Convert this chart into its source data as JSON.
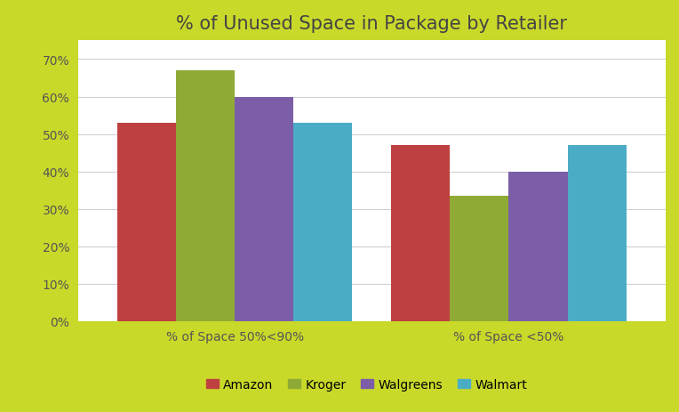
{
  "title": "% of Unused Space in Package by Retailer",
  "categories": [
    "% of Space 50%<90%",
    "% of Space <50%"
  ],
  "retailers": [
    "Amazon",
    "Kroger",
    "Walgreens",
    "Walmart"
  ],
  "values": {
    "Amazon": [
      0.53,
      0.47
    ],
    "Kroger": [
      0.67,
      0.335
    ],
    "Walgreens": [
      0.6,
      0.4
    ],
    "Walmart": [
      0.53,
      0.47
    ]
  },
  "colors": {
    "Amazon": "#bf4040",
    "Kroger": "#8faa35",
    "Walgreens": "#7b5ea7",
    "Walmart": "#4bacc6"
  },
  "ylim": [
    0,
    0.75
  ],
  "yticks": [
    0.0,
    0.1,
    0.2,
    0.3,
    0.4,
    0.5,
    0.6,
    0.7
  ],
  "background_outer": "#c9d929",
  "background_inner": "#ffffff",
  "grid_color": "#d0d0d0",
  "title_fontsize": 15,
  "legend_fontsize": 10,
  "tick_fontsize": 10,
  "bar_width": 0.15,
  "border_width": 8
}
